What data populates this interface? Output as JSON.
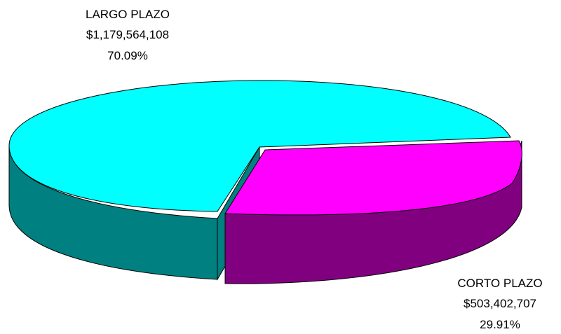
{
  "chart_data": {
    "type": "pie",
    "style": "3d-exploded",
    "slices": [
      {
        "label": "LARGO PLAZO",
        "value_text": "$1,179,564,108",
        "percent_text": "70.09%",
        "value": 1179564108,
        "percent": 70.09,
        "top_color": "#00FFFF",
        "side_color": "#008080"
      },
      {
        "label": "CORTO PLAZO",
        "value_text": "$503,402,707",
        "percent_text": "29.91%",
        "value": 503402707,
        "percent": 29.91,
        "top_color": "#FF00FF",
        "side_color": "#800080",
        "exploded": true
      }
    ],
    "legend": "none"
  }
}
